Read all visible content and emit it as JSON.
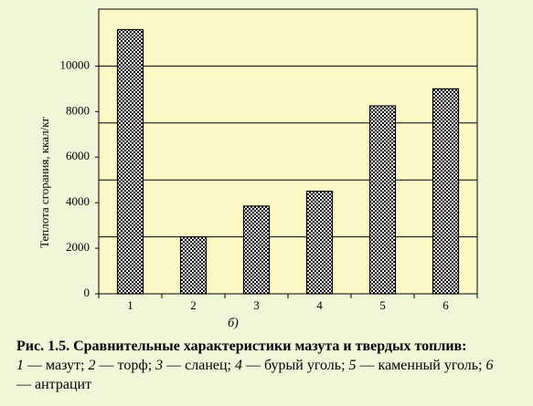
{
  "chart_data": {
    "type": "bar",
    "ylabel": "Теплота сгорания, ккал/кг",
    "xlabel": "б)",
    "categories": [
      "1",
      "2",
      "3",
      "4",
      "5",
      "6"
    ],
    "values": [
      11600,
      2500,
      3850,
      4500,
      8250,
      9000
    ],
    "color": "#000000",
    "plot_background": "#fdf9c6",
    "ylim": [
      0,
      12500
    ],
    "yticks": [
      0,
      2000,
      4000,
      6000,
      8000,
      10000
    ],
    "ygrid": [
      2500,
      5000,
      7500,
      10000
    ],
    "grid": true
  },
  "caption": {
    "title": "Рис. 1.5. Сравнительные характеристики мазута и твердых топлив:",
    "items": [
      {
        "num": "1",
        "text": " — мазут; "
      },
      {
        "num": "2",
        "text": " — торф; "
      },
      {
        "num": "3",
        "text": " — сланец; "
      },
      {
        "num": "4",
        "text": " — бурый уголь; "
      },
      {
        "num": "5",
        "text": " — каменный уголь; "
      },
      {
        "num": "6",
        "text": " — антрацит"
      }
    ]
  }
}
